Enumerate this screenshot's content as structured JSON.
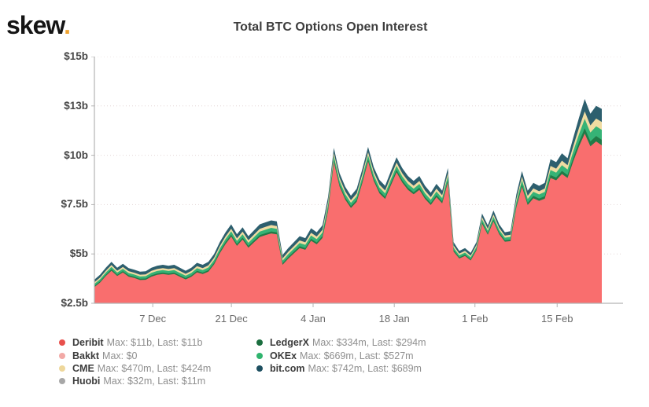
{
  "logo": {
    "text": "skew",
    "dot": ".",
    "dot_color": "#f0a330"
  },
  "title": "Total BTC Options Open Interest",
  "chart_data": {
    "type": "area",
    "stacked": true,
    "title": "Total BTC Options Open Interest",
    "grid": true,
    "legend_position": "bottom",
    "ylim": [
      2.5,
      15
    ],
    "y_unit": "$ billions",
    "yticks": [
      {
        "label": "$15b",
        "value": 15
      },
      {
        "label": "$13b",
        "value": 12.5
      },
      {
        "label": "$10b",
        "value": 10
      },
      {
        "label": "$7.5b",
        "value": 7.5
      },
      {
        "label": "$5b",
        "value": 5
      },
      {
        "label": "$2.5b",
        "value": 2.5
      }
    ],
    "xticks": [
      {
        "label": "7 Dec",
        "pos": 0.115
      },
      {
        "label": "21 Dec",
        "pos": 0.27
      },
      {
        "label": "4 Jan",
        "pos": 0.431
      },
      {
        "label": "18 Jan",
        "pos": 0.591
      },
      {
        "label": "1 Feb",
        "pos": 0.75
      },
      {
        "label": "15 Feb",
        "pos": 0.912
      }
    ],
    "stack": [
      {
        "name": "Deribit",
        "color": "#f96e6e",
        "cum_frac_of_others": 0
      },
      {
        "name": "LedgerX",
        "color": "#217a47",
        "cum_frac_of_others": 0.152
      },
      {
        "name": "OKEx",
        "color": "#36b376",
        "cum_frac_of_others": 0.424
      },
      {
        "name": "CME",
        "color": "#f0dca2",
        "cum_frac_of_others": 0.643
      },
      {
        "name": "bit.com",
        "color": "#2d5f6e",
        "cum_frac_of_others": 1
      }
    ],
    "deribit_values_billions": [
      3.32,
      3.55,
      3.88,
      4.15,
      3.88,
      4.06,
      3.85,
      3.78,
      3.68,
      3.69,
      3.85,
      3.94,
      3.98,
      3.94,
      3.98,
      3.84,
      3.71,
      3.84,
      4.07,
      3.98,
      4.1,
      4.47,
      5.03,
      5.5,
      5.88,
      5.41,
      5.73,
      5.32,
      5.59,
      5.86,
      5.95,
      6.04,
      5.99,
      4.45,
      4.76,
      5.03,
      5.3,
      5.21,
      5.67,
      5.49,
      5.81,
      7.2,
      9.65,
      8.42,
      7.75,
      7.33,
      7.64,
      8.6,
      9.69,
      8.7,
      8.07,
      7.79,
      8.48,
      9.14,
      8.62,
      8.25,
      8.02,
      8.25,
      7.79,
      7.48,
      7.88,
      7.56,
      8.63,
      5.12,
      4.77,
      4.9,
      4.67,
      5.18,
      6.53,
      5.97,
      6.65,
      6.0,
      5.62,
      5.65,
      7.35,
      8.4,
      7.48,
      7.82,
      7.69,
      7.8,
      8.85,
      8.73,
      9.05,
      8.85,
      9.7,
      10.45,
      11.1,
      10.45,
      10.7,
      10.5
    ],
    "others_total_billions": [
      0.38,
      0.4,
      0.42,
      0.45,
      0.42,
      0.44,
      0.43,
      0.42,
      0.42,
      0.43,
      0.45,
      0.46,
      0.47,
      0.46,
      0.47,
      0.46,
      0.44,
      0.46,
      0.48,
      0.47,
      0.5,
      0.53,
      0.57,
      0.6,
      0.62,
      0.59,
      0.62,
      0.58,
      0.61,
      0.64,
      0.65,
      0.66,
      0.66,
      0.5,
      0.54,
      0.57,
      0.6,
      0.59,
      0.63,
      0.61,
      0.64,
      0.7,
      0.72,
      0.68,
      0.65,
      0.62,
      0.66,
      0.7,
      0.73,
      0.7,
      0.68,
      0.66,
      0.72,
      0.76,
      0.73,
      0.7,
      0.68,
      0.7,
      0.66,
      0.62,
      0.67,
      0.64,
      0.72,
      0.48,
      0.38,
      0.4,
      0.38,
      0.42,
      0.52,
      0.48,
      0.55,
      0.5,
      0.48,
      0.5,
      0.65,
      0.8,
      0.72,
      0.78,
      0.76,
      0.8,
      0.95,
      0.92,
      1.05,
      1.0,
      1.2,
      1.45,
      1.75,
      1.65,
      1.8,
      1.85
    ]
  },
  "legend": {
    "columns": [
      [
        {
          "name": "Deribit",
          "detail": "Max: $11b, Last: $11b",
          "color": "#e8504c"
        },
        {
          "name": "Bakkt",
          "detail": "Max: $0",
          "color": "#f2a9a6"
        },
        {
          "name": "CME",
          "detail": "Max: $470m, Last: $424m",
          "color": "#eed79b"
        },
        {
          "name": "Huobi",
          "detail": "Max: $32m, Last: $11m",
          "color": "#a7a7a7"
        }
      ],
      [
        {
          "name": "LedgerX",
          "detail": "Max: $334m, Last: $294m",
          "color": "#1b6e3f"
        },
        {
          "name": "OKEx",
          "detail": "Max: $669m, Last: $527m",
          "color": "#2fb46e"
        },
        {
          "name": "bit.com",
          "detail": "Max: $742m, Last: $689m",
          "color": "#1d4f60"
        }
      ]
    ]
  }
}
